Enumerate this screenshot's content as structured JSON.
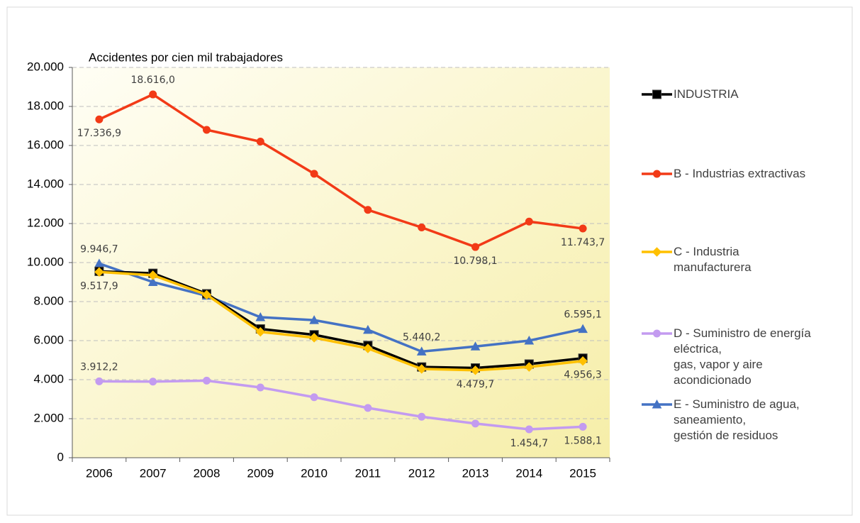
{
  "chart_data": {
    "type": "line",
    "y_axis_label": "Accidentes por cien mil trabajadores",
    "categories": [
      "2006",
      "2007",
      "2008",
      "2009",
      "2010",
      "2011",
      "2012",
      "2013",
      "2014",
      "2015"
    ],
    "ylim": [
      0,
      20000
    ],
    "yticks": [
      0,
      {
        "value": 2000,
        "label": "2.000"
      },
      {
        "value": 4000,
        "label": "4.000"
      },
      {
        "value": 6000,
        "label": "6.000"
      },
      {
        "value": 8000,
        "label": "8.000"
      },
      {
        "value": 10000,
        "label": "10.000"
      },
      {
        "value": 12000,
        "label": "12.000"
      },
      {
        "value": 14000,
        "label": "14.000"
      },
      {
        "value": 16000,
        "label": "16.000"
      },
      {
        "value": 18000,
        "label": "18.000"
      },
      {
        "value": 20000,
        "label": "20.000"
      }
    ],
    "grid": true,
    "legend": "right",
    "series": [
      {
        "name": "INDUSTRIA",
        "color": "#000000",
        "marker": "square",
        "values": [
          9550,
          9450,
          8400,
          6600,
          6300,
          5750,
          4650,
          4600,
          4800,
          5100
        ]
      },
      {
        "name": "B - Industrias extractivas",
        "color": "#f23a17",
        "marker": "circle",
        "values": [
          17336.9,
          18616.0,
          16800,
          16200,
          14550,
          12700,
          11800,
          10798.1,
          12100,
          11743.7
        ],
        "value_labels": [
          "17.336,9",
          "18.616,0",
          null,
          null,
          null,
          null,
          null,
          "10.798,1",
          null,
          "11.743,7"
        ]
      },
      {
        "name": "C - Industria\nmanufacturera",
        "color": "#ffc000",
        "marker": "diamond",
        "values": [
          9517.9,
          9350,
          8350,
          6450,
          6150,
          5600,
          4550,
          4479.7,
          4650,
          4956.3
        ],
        "value_labels": [
          "9.517,9",
          null,
          null,
          null,
          null,
          null,
          null,
          "4.479,7",
          null,
          "4.956,3"
        ]
      },
      {
        "name": "D - Suministro de energía\neléctrica,\ngas, vapor y aire\nacondicionado",
        "color": "#c39bf0",
        "marker": "circle",
        "values": [
          3912.2,
          3900,
          3950,
          3600,
          3100,
          2550,
          2100,
          1750,
          1454.7,
          1588.1
        ],
        "value_labels": [
          "3.912,2",
          null,
          null,
          null,
          null,
          null,
          null,
          null,
          "1.454,7",
          "1.588,1"
        ]
      },
      {
        "name": "E - Suministro de agua,\nsaneamiento,\ngestión de residuos",
        "color": "#4472c4",
        "marker": "triangle",
        "values": [
          9946.7,
          9000,
          8300,
          7200,
          7050,
          6550,
          5440.2,
          5700,
          6000,
          6595.1
        ],
        "value_labels": [
          "9.946,7",
          null,
          null,
          null,
          null,
          null,
          "5.440,2",
          null,
          null,
          "6.595,1"
        ]
      }
    ]
  }
}
